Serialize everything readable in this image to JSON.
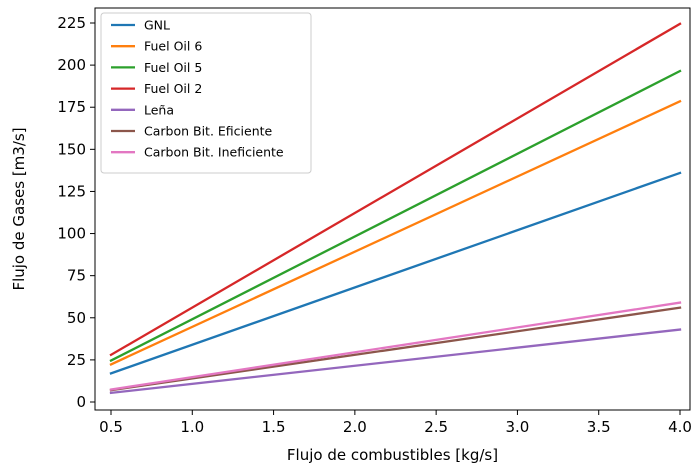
{
  "chart_data": {
    "type": "line",
    "title": "",
    "xlabel": "Flujo de combustibles [kg/s]",
    "ylabel": "Flujo de Gases [m3/s]",
    "xlim": [
      0.5,
      4.0
    ],
    "ylim": [
      0,
      225
    ],
    "x_ticks": [
      "0.5",
      "1.0",
      "1.5",
      "2.0",
      "2.5",
      "3.0",
      "3.5",
      "4.0"
    ],
    "y_ticks": [
      "0",
      "25",
      "50",
      "75",
      "100",
      "125",
      "150",
      "175",
      "200",
      "225"
    ],
    "grid": false,
    "legend_position": "top-left",
    "x": [
      0.5,
      4.0
    ],
    "series": [
      {
        "name": "GNL",
        "color": "#1f77b4",
        "values": [
          17,
          136
        ]
      },
      {
        "name": "Fuel Oil 6",
        "color": "#ff7f0e",
        "values": [
          22.3,
          178.5
        ]
      },
      {
        "name": "Fuel Oil 5",
        "color": "#2ca02c",
        "values": [
          24.6,
          196.5
        ]
      },
      {
        "name": "Fuel Oil 2",
        "color": "#d62728",
        "values": [
          28,
          224.5
        ]
      },
      {
        "name": "Leña",
        "color": "#9467bd",
        "values": [
          5.4,
          43
        ]
      },
      {
        "name": "Carbon Bit. Eficiente",
        "color": "#8c564b",
        "values": [
          7,
          56
        ]
      },
      {
        "name": "Carbon Bit. Ineficiente",
        "color": "#e377c2",
        "values": [
          7.4,
          59
        ]
      }
    ]
  }
}
